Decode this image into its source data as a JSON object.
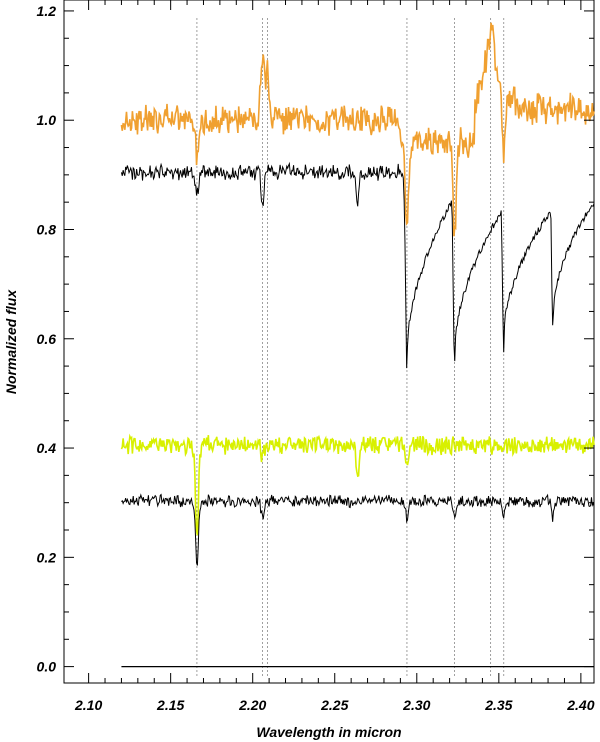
{
  "chart_data": {
    "type": "line",
    "xlabel": "Wavelength in micron",
    "ylabel": "Normalized flux",
    "xlim": [
      2.085,
      2.408
    ],
    "ylim": [
      -0.03,
      1.22
    ],
    "x_ticks": [
      "2.10",
      "2.15",
      "2.20",
      "2.25",
      "2.30",
      "2.35",
      "2.40"
    ],
    "y_ticks": [
      "0.0",
      "0.2",
      "0.4",
      "0.6",
      "0.8",
      "1.0",
      "1.2"
    ],
    "grid": false,
    "legend": "none",
    "reference_lines_x": [
      2.166,
      2.206,
      2.209,
      2.294,
      2.323,
      2.345,
      2.353
    ],
    "baseline": {
      "x": [
        2.12,
        2.408
      ],
      "y": [
        0.0,
        0.0
      ],
      "color": "#000000"
    },
    "series": [
      {
        "color": "#f0a030",
        "level": 1.0,
        "noise": 0.022,
        "features": [
          {
            "x": 2.166,
            "depth": 0.07,
            "width": 0.0012
          },
          {
            "x": 2.206,
            "depth": -0.12,
            "width": 0.0015
          },
          {
            "x": 2.209,
            "depth": -0.08,
            "width": 0.0012
          },
          {
            "x": 2.294,
            "depth": 0.14,
            "width": 0.0015
          },
          {
            "x": 2.323,
            "depth": 0.16,
            "width": 0.0015
          },
          {
            "x": 2.345,
            "depth": -0.12,
            "width": 0.004
          },
          {
            "x": 2.353,
            "depth": 0.1,
            "width": 0.0012
          }
        ],
        "segments": [
          [
            2.12,
            2.29,
            1.0
          ],
          [
            2.29,
            2.335,
            0.96
          ],
          [
            2.335,
            2.36,
            1.04
          ],
          [
            2.36,
            2.408,
            1.02
          ]
        ]
      },
      {
        "color": "#000000",
        "level": 0.905,
        "noise": 0.012,
        "features": [
          {
            "x": 2.166,
            "depth": 0.04,
            "width": 0.0012
          },
          {
            "x": 2.206,
            "depth": 0.06,
            "width": 0.0012
          },
          {
            "x": 2.264,
            "depth": 0.06,
            "width": 0.0012
          },
          {
            "x": 2.294,
            "depth": 0.35,
            "width": 0.0012
          },
          {
            "x": 2.323,
            "depth": 0.34,
            "width": 0.0012
          },
          {
            "x": 2.353,
            "depth": 0.32,
            "width": 0.0012
          },
          {
            "x": 2.383,
            "depth": 0.28,
            "width": 0.0012
          }
        ],
        "bandheads": [
          {
            "x": 2.294,
            "drop": 0.33,
            "recover_to": 0.86,
            "span": 0.029
          },
          {
            "x": 2.323,
            "drop": 0.33,
            "recover_to": 0.84,
            "span": 0.03
          },
          {
            "x": 2.353,
            "drop": 0.3,
            "recover_to": 0.84,
            "span": 0.03
          },
          {
            "x": 2.383,
            "drop": 0.26,
            "recover_to": 0.85,
            "span": 0.025
          }
        ]
      },
      {
        "color": "#d8f000",
        "level": 0.405,
        "noise": 0.014,
        "features": [
          {
            "x": 2.166,
            "depth": 0.16,
            "width": 0.0013
          },
          {
            "x": 2.206,
            "depth": 0.02,
            "width": 0.0012
          },
          {
            "x": 2.264,
            "depth": 0.05,
            "width": 0.0015
          },
          {
            "x": 2.294,
            "depth": 0.03,
            "width": 0.0012
          }
        ]
      },
      {
        "color": "#000000",
        "level": 0.303,
        "noise": 0.009,
        "features": [
          {
            "x": 2.166,
            "depth": 0.12,
            "width": 0.0012
          },
          {
            "x": 2.206,
            "depth": 0.03,
            "width": 0.0012
          },
          {
            "x": 2.294,
            "depth": 0.03,
            "width": 0.0012
          },
          {
            "x": 2.323,
            "depth": 0.03,
            "width": 0.0012
          },
          {
            "x": 2.353,
            "depth": 0.03,
            "width": 0.0012
          },
          {
            "x": 2.383,
            "depth": 0.03,
            "width": 0.0012
          }
        ]
      }
    ]
  }
}
